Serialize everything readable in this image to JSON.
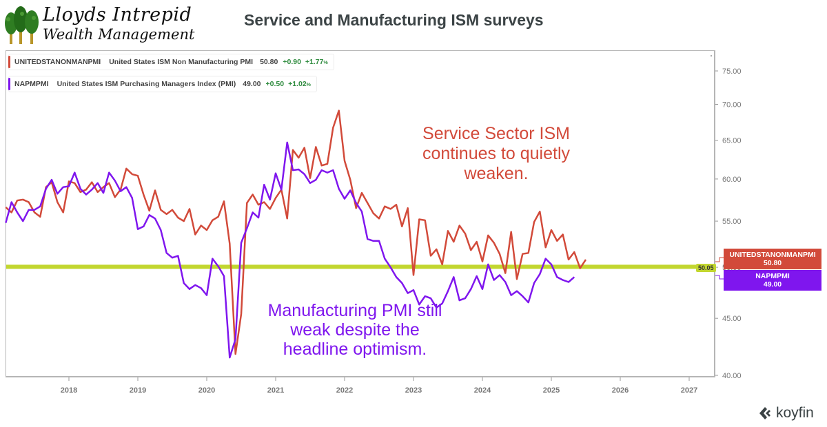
{
  "logo": {
    "line1": "Lloyds Intrepid",
    "line2": "Wealth Management",
    "icon": "trees-icon"
  },
  "header": {
    "title": "Service and Manufacturing ISM surveys"
  },
  "legend": [
    {
      "symbol": "UNITEDSTANONMANPMI",
      "name": "United States ISM Non Manufacturing PMI",
      "value": "50.80",
      "change": "+0.90",
      "pct": "+1.77",
      "pct_suffix": "%",
      "color": "#d24a3a"
    },
    {
      "symbol": "NAPMPMI",
      "name": "United States ISM Purchasing Managers Index (PMI)",
      "value": "49.00",
      "change": "+0.50",
      "pct": "+1.02",
      "pct_suffix": "%",
      "color": "#7f16ee"
    }
  ],
  "annotations": {
    "services": [
      "Service Sector ISM",
      "continues to quietly",
      "weaken."
    ],
    "manufacturing": [
      "Manufacturing PMI still",
      "weak despite the",
      "headline optimism."
    ]
  },
  "tags": {
    "services": {
      "symbol": "UNITEDSTANONMANPMI",
      "value": "50.80"
    },
    "manufacturing": {
      "symbol": "NAPMPMI",
      "value": "49.00"
    },
    "hline": "50.05"
  },
  "brand": {
    "name": "koyfin",
    "icon": "koyfin-logo-icon"
  },
  "colors": {
    "services": "#d24a3a",
    "manufacturing": "#7f16ee",
    "hline": "#c2d62f"
  },
  "chart_data": {
    "type": "line",
    "title": "Service and Manufacturing ISM surveys",
    "xlabel": "",
    "ylabel": "",
    "yscale": "log",
    "ylim": [
      40,
      77
    ],
    "xlim": [
      "2017-02",
      "2027-05"
    ],
    "yticks": [
      "40.00",
      "45.00",
      "50.00",
      "55.00",
      "60.00",
      "65.00",
      "70.00",
      "75.00"
    ],
    "xticks": [
      "2018",
      "2019",
      "2020",
      "2021",
      "2022",
      "2023",
      "2024",
      "2025",
      "2026",
      "2027"
    ],
    "grid": false,
    "legend_position": "top-left",
    "hline": {
      "value": 50.05,
      "label": "50.05"
    },
    "x_start": "2017-02",
    "x_step": "monthly",
    "series": [
      {
        "name": "UNITEDSTANONMANPMI",
        "values": [
          56.6,
          56.0,
          57.4,
          57.5,
          57.2,
          56.0,
          55.5,
          59.0,
          59.6,
          57.2,
          56.0,
          59.7,
          59.5,
          58.4,
          58.7,
          59.6,
          58.4,
          59.0,
          59.5,
          57.8,
          58.7,
          61.3,
          60.6,
          60.4,
          58.1,
          56.2,
          58.6,
          56.3,
          55.8,
          56.3,
          55.4,
          55.0,
          56.4,
          53.5,
          54.5,
          54.0,
          55.1,
          55.5,
          57.3,
          52.5,
          41.8,
          45.4,
          57.1,
          58.1,
          56.9,
          57.2,
          56.4,
          57.7,
          58.7,
          55.3,
          63.7,
          62.7,
          64.0,
          60.1,
          64.1,
          61.7,
          61.9,
          66.7,
          69.1,
          62.3,
          59.9,
          56.5,
          58.3,
          57.1,
          55.9,
          55.3,
          56.7,
          56.4,
          56.9,
          54.4,
          56.5,
          49.2,
          55.2,
          55.1,
          51.2,
          51.9,
          50.3,
          53.9,
          52.7,
          54.5,
          53.6,
          51.8,
          52.7,
          50.6,
          53.4,
          52.6,
          51.4,
          49.4,
          53.8,
          48.8,
          51.4,
          51.5,
          54.9,
          56.1,
          52.1,
          54.0,
          52.8,
          53.5,
          50.8,
          51.6,
          49.9,
          50.8
        ]
      },
      {
        "name": "NAPMPMI",
        "values": [
          54.8,
          57.2,
          56.0,
          55.0,
          56.3,
          56.3,
          56.7,
          58.8,
          59.9,
          58.2,
          59.0,
          59.1,
          60.8,
          58.8,
          58.1,
          58.7,
          59.5,
          58.3,
          60.8,
          59.8,
          58.5,
          59.0,
          57.7,
          54.1,
          54.4,
          55.7,
          55.3,
          54.0,
          51.5,
          51.0,
          51.2,
          48.4,
          47.8,
          48.2,
          47.9,
          47.2,
          50.9,
          50.1,
          49.1,
          41.5,
          43.1,
          52.6,
          54.2,
          56.0,
          55.4,
          59.3,
          57.5,
          60.7,
          58.7,
          64.7,
          61.1,
          61.2,
          60.6,
          59.5,
          59.9,
          61.1,
          60.8,
          61.1,
          58.8,
          57.6,
          58.6,
          57.1,
          56.1,
          53.0,
          52.8,
          52.8,
          50.9,
          50.0,
          49.0,
          48.4,
          47.4,
          47.7,
          46.3,
          47.1,
          46.9,
          46.0,
          46.4,
          47.6,
          49.0,
          46.7,
          46.9,
          47.8,
          49.1,
          47.8,
          50.3,
          48.7,
          49.2,
          48.5,
          47.2,
          47.6,
          47.1,
          46.5,
          48.4,
          49.3,
          50.9,
          50.3,
          49.0,
          48.7,
          48.5,
          49.0
        ]
      }
    ]
  }
}
